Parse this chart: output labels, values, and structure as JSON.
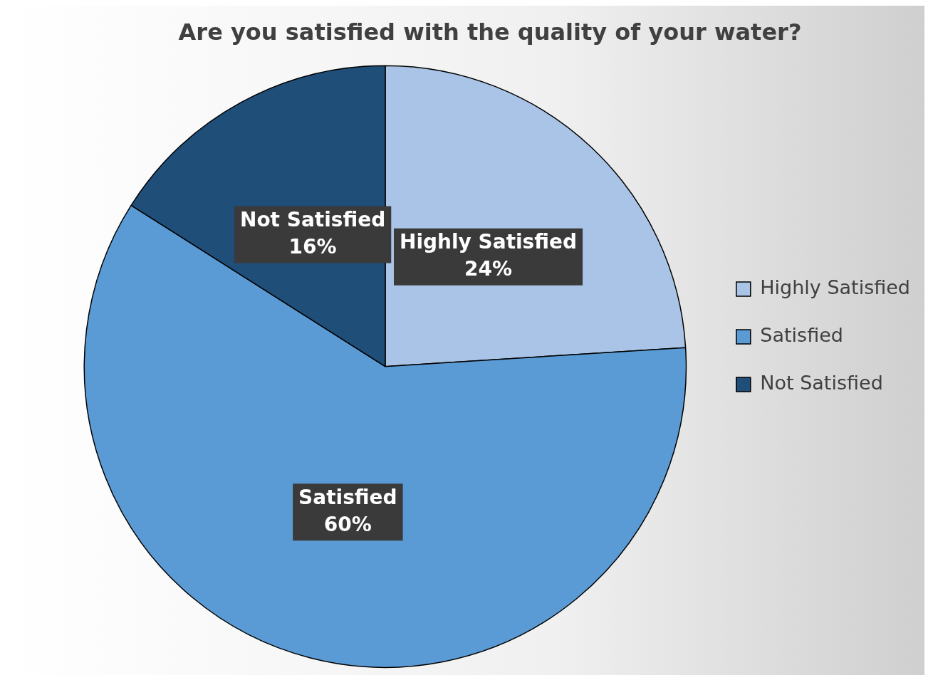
{
  "chart_data": {
    "type": "pie",
    "title": "Are you satisfied with the quality of your water?",
    "categories": [
      "Highly Satisfied",
      "Satisfied",
      "Not Satisfied"
    ],
    "values": [
      24,
      60,
      16
    ],
    "colors": [
      "#a9c4e6",
      "#5b9bd5",
      "#1f4e79"
    ],
    "value_labels": [
      "24%",
      "60%",
      "16%"
    ],
    "legend": "right"
  }
}
